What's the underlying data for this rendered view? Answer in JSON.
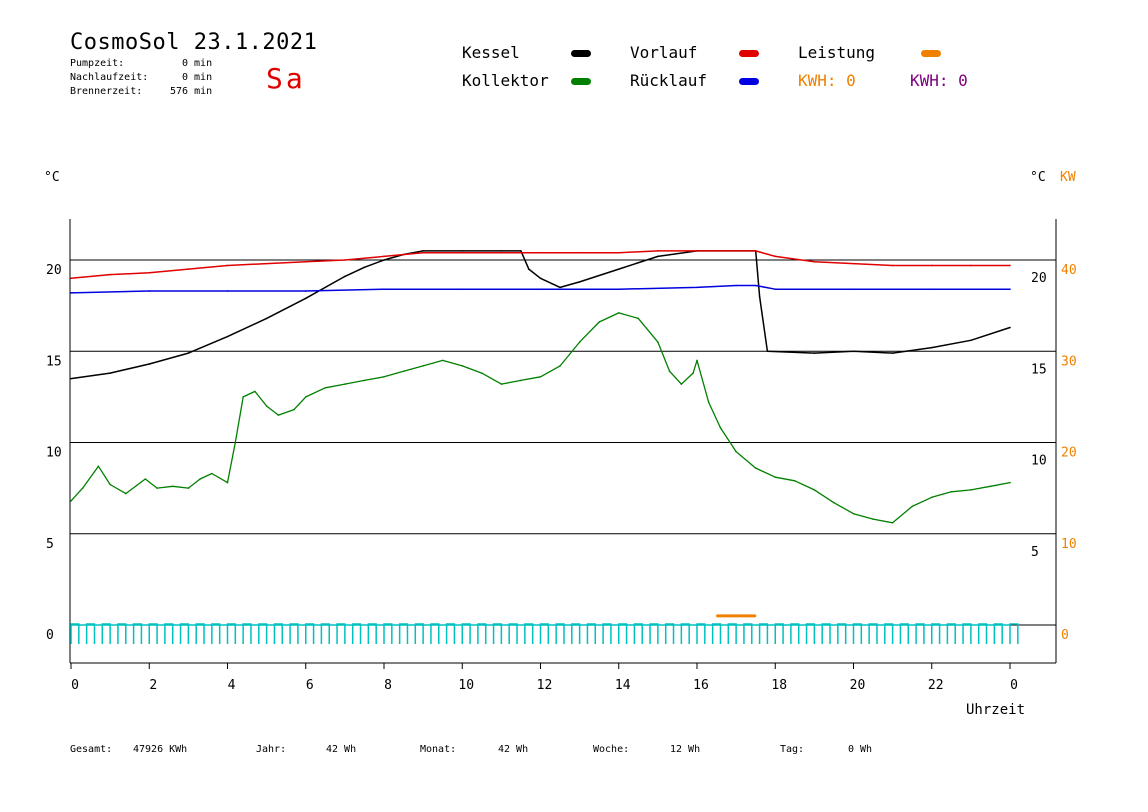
{
  "header": {
    "title": "CosmoSol 23.1.2021",
    "day": "Sa",
    "pump_label": "Pumpzeit:",
    "pump_value": "0 min",
    "after_label": "Nachlaufzeit:",
    "after_value": "0 min",
    "burner_label": "Brennerzeit:",
    "burner_value": "576 min"
  },
  "legend": {
    "kessel": "Kessel",
    "vorlauf": "Vorlauf",
    "leistung": "Leistung",
    "kollektor": "Kollektor",
    "ruecklauf": "Rücklauf",
    "kwh1": "KWH: 0",
    "kwh2": "KWH: 0",
    "colors": {
      "kessel": "#000000",
      "vorlauf": "#e00000",
      "leistung": "#f08000",
      "kollektor": "#008000",
      "ruecklauf": "#0000e0",
      "kwh2": "#800080",
      "pump": "#00c0c0"
    }
  },
  "axes": {
    "left_unit": "°C",
    "right_unit": "°C",
    "right_unit2": "KW",
    "xlabel": "Uhrzeit"
  },
  "footer": {
    "gesamt_label": "Gesamt:",
    "gesamt_value": "47926 KWh",
    "jahr_label": "Jahr:",
    "jahr_value": "42 Wh",
    "monat_label": "Monat:",
    "monat_value": "42 Wh",
    "woche_label": "Woche:",
    "woche_value": "12 Wh",
    "tag_label": "Tag:",
    "tag_value": "0 Wh"
  },
  "chart_data": {
    "type": "line",
    "xlim": [
      0,
      24
    ],
    "ylim": [
      -1,
      22
    ],
    "grid": true,
    "x_ticks": [
      "0",
      "2",
      "4",
      "6",
      "8",
      "10",
      "12",
      "14",
      "16",
      "18",
      "20",
      "22",
      "0"
    ],
    "left_ticks": [
      "20",
      "15",
      "10",
      "5",
      "0"
    ],
    "right_ticks_c": [
      "20",
      "15",
      "10",
      "5"
    ],
    "right_ticks_kw": [
      "40",
      "30",
      "20",
      "10",
      "0"
    ],
    "series": [
      {
        "name": "Kessel",
        "x": [
          0,
          1,
          2,
          3,
          4,
          5,
          6,
          7,
          7.5,
          8,
          8.5,
          9,
          10,
          11,
          11.5,
          11.7,
          12,
          12.5,
          13,
          14,
          15,
          16,
          17,
          17.5,
          17.6,
          17.8,
          19,
          20,
          21,
          22,
          23,
          24
        ],
        "values": [
          13.5,
          13.8,
          14.3,
          14.9,
          15.8,
          16.8,
          17.9,
          19.1,
          19.6,
          20.0,
          20.3,
          20.5,
          20.5,
          20.5,
          20.5,
          19.5,
          19.0,
          18.5,
          18.8,
          19.5,
          20.2,
          20.5,
          20.5,
          20.5,
          18,
          15,
          14.9,
          15.0,
          14.9,
          15.2,
          15.6,
          16.3
        ]
      },
      {
        "name": "Vorlauf",
        "x": [
          0,
          1,
          2,
          3,
          4,
          5,
          6,
          7,
          8,
          9,
          10,
          11,
          12,
          13,
          14,
          15,
          16,
          17,
          17.5,
          18,
          19,
          20,
          21,
          22,
          23,
          24
        ],
        "values": [
          19.0,
          19.2,
          19.3,
          19.5,
          19.7,
          19.8,
          19.9,
          20.0,
          20.2,
          20.4,
          20.4,
          20.4,
          20.4,
          20.4,
          20.4,
          20.5,
          20.5,
          20.5,
          20.5,
          20.2,
          19.9,
          19.8,
          19.7,
          19.7,
          19.7,
          19.7
        ]
      },
      {
        "name": "Rücklauf",
        "x": [
          0,
          2,
          4,
          6,
          8,
          10,
          12,
          14,
          16,
          17,
          17.5,
          18,
          20,
          22,
          24
        ],
        "values": [
          18.2,
          18.3,
          18.3,
          18.3,
          18.4,
          18.4,
          18.4,
          18.4,
          18.5,
          18.6,
          18.6,
          18.4,
          18.4,
          18.4,
          18.4
        ]
      },
      {
        "name": "Kollektor",
        "x": [
          0,
          0.3,
          0.7,
          1.0,
          1.4,
          1.9,
          2.2,
          2.6,
          3.0,
          3.3,
          3.6,
          4.0,
          4.2,
          4.4,
          4.7,
          5.0,
          5.3,
          5.7,
          6.0,
          6.5,
          7.0,
          7.5,
          8.0,
          8.5,
          9.0,
          9.5,
          10.0,
          10.5,
          11.0,
          11.5,
          12.0,
          12.5,
          13.0,
          13.5,
          14.0,
          14.5,
          15.0,
          15.3,
          15.6,
          15.9,
          16.0,
          16.3,
          16.6,
          17.0,
          17.5,
          18.0,
          18.5,
          19.0,
          19.5,
          20.0,
          20.5,
          21.0,
          21.5,
          22.0,
          22.5,
          23.0,
          23.5,
          24.0
        ],
        "values": [
          6.8,
          7.5,
          8.7,
          7.7,
          7.2,
          8.0,
          7.5,
          7.6,
          7.5,
          8.0,
          8.3,
          7.8,
          10.0,
          12.5,
          12.8,
          12.0,
          11.5,
          11.8,
          12.5,
          13.0,
          13.2,
          13.4,
          13.6,
          13.9,
          14.2,
          14.5,
          14.2,
          13.8,
          13.2,
          13.4,
          13.6,
          14.2,
          15.5,
          16.6,
          17.1,
          16.8,
          15.5,
          13.9,
          13.2,
          13.8,
          14.5,
          12.2,
          10.8,
          9.5,
          8.6,
          8.1,
          7.9,
          7.4,
          6.7,
          6.1,
          5.8,
          5.6,
          6.5,
          7.0,
          7.3,
          7.4,
          7.6,
          7.8
        ]
      },
      {
        "name": "Leistung",
        "x": [
          16.5,
          17.5
        ],
        "values": [
          0.5,
          0.5
        ]
      }
    ]
  }
}
